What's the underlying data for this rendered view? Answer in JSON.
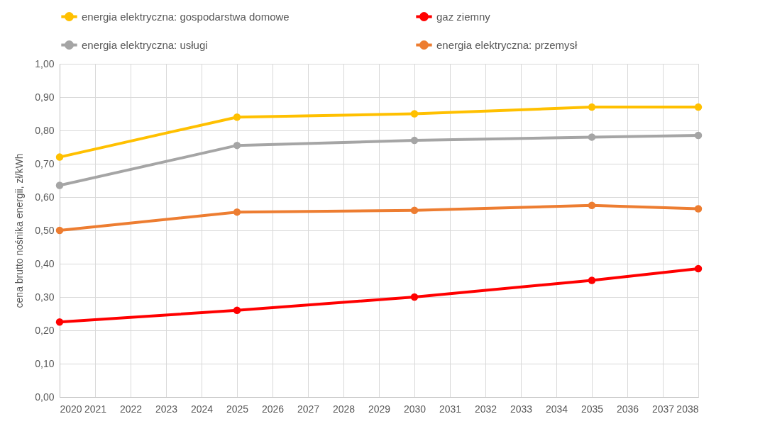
{
  "chart_data": {
    "type": "line",
    "ylabel": "cena brutto nośnika energii, zł/kWh",
    "x": [
      2020,
      2025,
      2030,
      2035,
      2038
    ],
    "series": [
      {
        "name": "energia elektryczna: gospodarstwa domowe",
        "color": "#ffc000",
        "values": [
          0.72,
          0.84,
          0.85,
          0.87,
          0.87
        ]
      },
      {
        "name": "gaz ziemny",
        "color": "#ff0000",
        "values": [
          0.225,
          0.26,
          0.3,
          0.35,
          0.385
        ]
      },
      {
        "name": "energia elektryczna: usługi",
        "color": "#a5a5a5",
        "values": [
          0.635,
          0.755,
          0.77,
          0.78,
          0.785
        ]
      },
      {
        "name": "energia elektryczna: przemysł",
        "color": "#ed7d31",
        "values": [
          0.5,
          0.555,
          0.56,
          0.575,
          0.565
        ]
      }
    ],
    "xlim": [
      2020,
      2038
    ],
    "xticks": [
      2020,
      2021,
      2022,
      2023,
      2024,
      2025,
      2026,
      2027,
      2028,
      2029,
      2030,
      2031,
      2032,
      2033,
      2034,
      2035,
      2036,
      2037,
      2038
    ],
    "ylim": [
      0,
      1
    ],
    "yticks": [
      {
        "value": 0,
        "label": "0,00"
      },
      {
        "value": 0.1,
        "label": "0,10"
      },
      {
        "value": 0.2,
        "label": "0,20"
      },
      {
        "value": 0.3,
        "label": "0,30"
      },
      {
        "value": 0.4,
        "label": "0,40"
      },
      {
        "value": 0.5,
        "label": "0,50"
      },
      {
        "value": 0.6,
        "label": "0,60"
      },
      {
        "value": 0.7,
        "label": "0,70"
      },
      {
        "value": 0.8,
        "label": "0,80"
      },
      {
        "value": 0.9,
        "label": "0,90"
      },
      {
        "value": 1,
        "label": "1,00"
      }
    ],
    "grid": true,
    "legend": "top",
    "marker": "circle",
    "line_style": "solid"
  }
}
